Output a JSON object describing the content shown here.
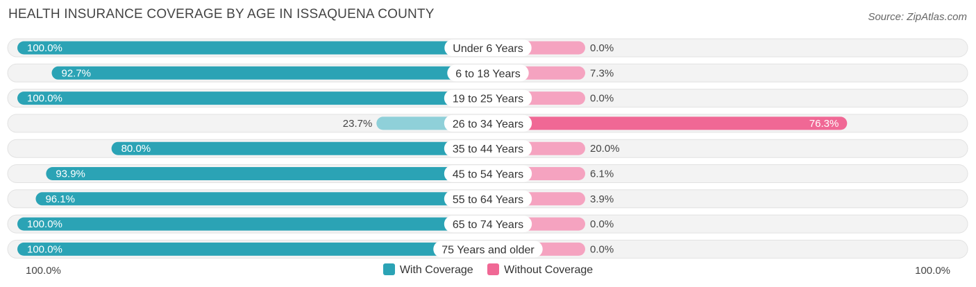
{
  "header": {
    "title": "HEALTH INSURANCE COVERAGE BY AGE IN ISSAQUENA COUNTY",
    "source": "Source: ZipAtlas.com"
  },
  "colors": {
    "with_dark": "#2ba3b5",
    "with_light": "#8fd0d9",
    "without_dark": "#f06895",
    "without_light": "#f5a3c0",
    "track": "#f0f0f0"
  },
  "axis": {
    "left_label": "100.0%",
    "right_label": "100.0%"
  },
  "legend": {
    "with_label": "With Coverage",
    "without_label": "Without Coverage"
  },
  "chart_data": {
    "type": "bar",
    "orientation": "horizontal-diverging",
    "title": "HEALTH INSURANCE COVERAGE BY AGE IN ISSAQUENA COUNTY",
    "categories": [
      "Under 6 Years",
      "6 to 18 Years",
      "19 to 25 Years",
      "26 to 34 Years",
      "35 to 44 Years",
      "45 to 54 Years",
      "55 to 64 Years",
      "65 to 74 Years",
      "75 Years and older"
    ],
    "series": [
      {
        "name": "With Coverage",
        "values": [
          100.0,
          92.7,
          100.0,
          23.7,
          80.0,
          93.9,
          96.1,
          100.0,
          100.0
        ],
        "labels": [
          "100.0%",
          "92.7%",
          "100.0%",
          "23.7%",
          "80.0%",
          "93.9%",
          "96.1%",
          "100.0%",
          "100.0%"
        ]
      },
      {
        "name": "Without Coverage",
        "values": [
          0.0,
          7.3,
          0.0,
          76.3,
          20.0,
          6.1,
          3.9,
          0.0,
          0.0
        ],
        "labels": [
          "0.0%",
          "7.3%",
          "0.0%",
          "76.3%",
          "20.0%",
          "6.1%",
          "3.9%",
          "0.0%",
          "0.0%"
        ]
      }
    ],
    "xlim": [
      0,
      100
    ],
    "legend_position": "bottom-center"
  }
}
